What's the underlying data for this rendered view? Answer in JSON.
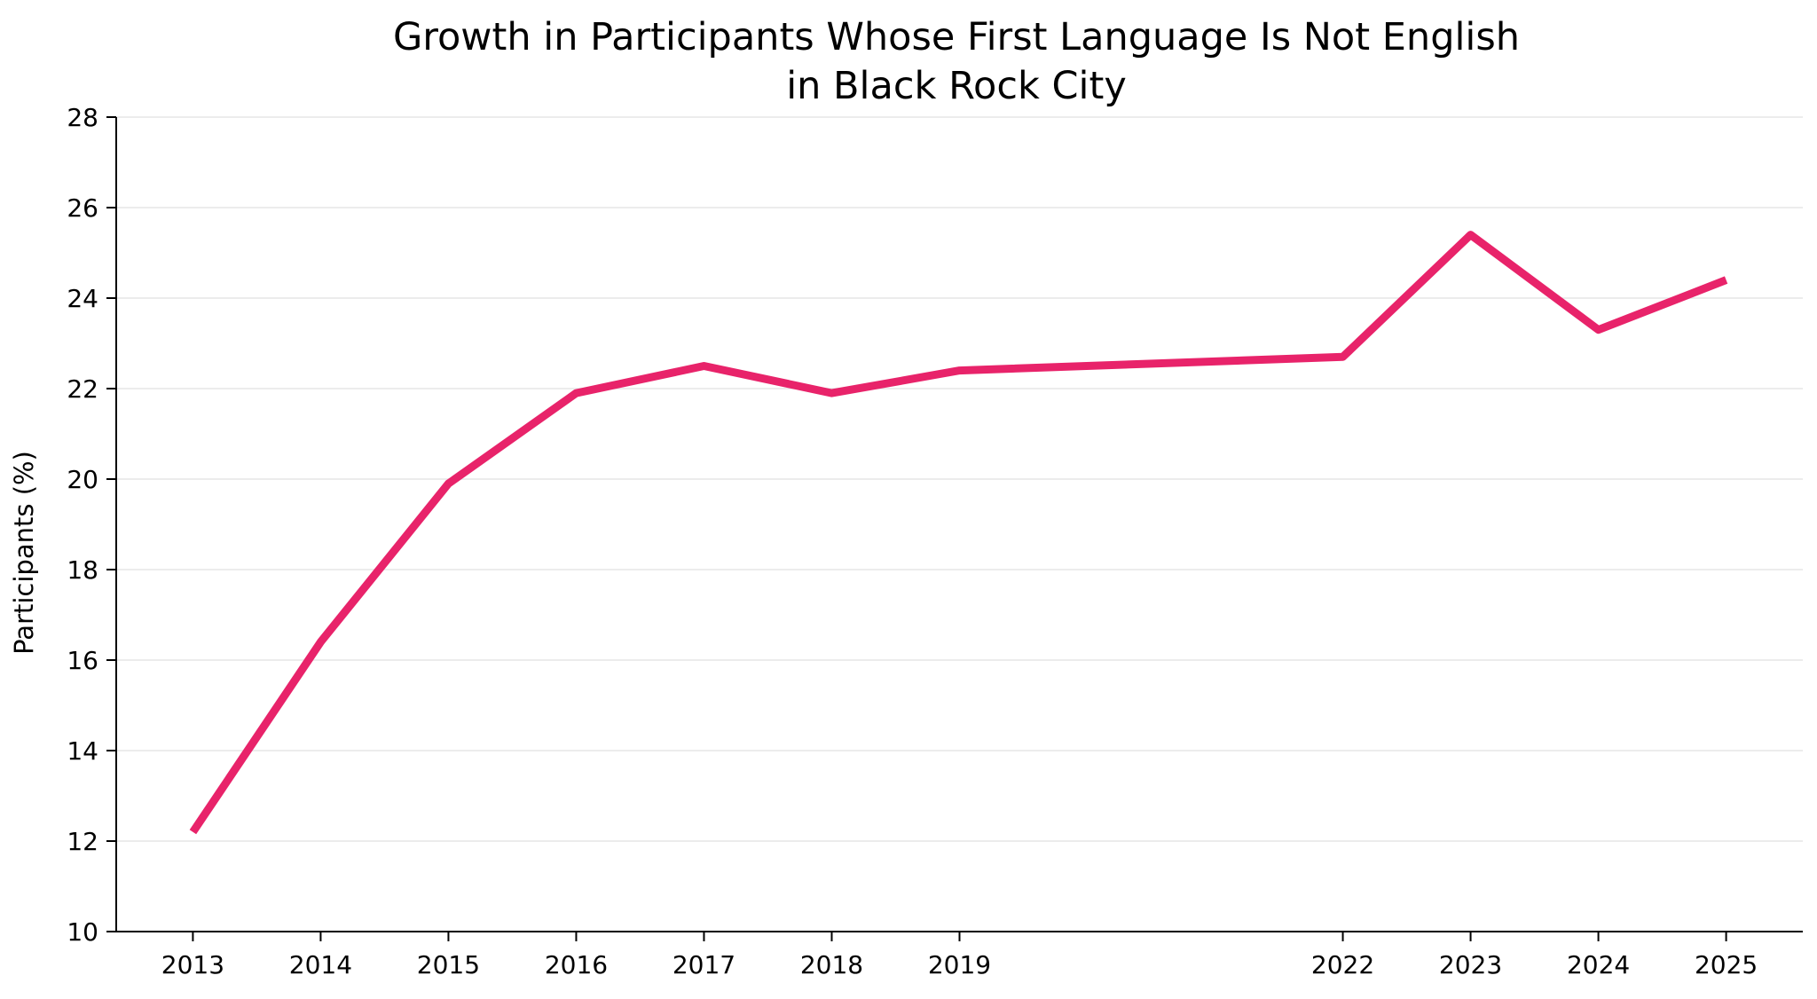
{
  "chart_data": {
    "type": "line",
    "title": [
      "Growth in Participants Whose First Language Is Not English",
      "in Black Rock City"
    ],
    "xlabel": "",
    "ylabel": "Participants (%)",
    "x": [
      2013,
      2014,
      2015,
      2016,
      2017,
      2018,
      2019,
      2022,
      2023,
      2024,
      2025
    ],
    "xticks": [
      "2013",
      "2014",
      "2015",
      "2016",
      "2017",
      "2018",
      "2019",
      "2022",
      "2023",
      "2024",
      "2025"
    ],
    "yticks": [
      "10",
      "12",
      "14",
      "16",
      "18",
      "20",
      "22",
      "24",
      "26",
      "28"
    ],
    "ylim": [
      10,
      28
    ],
    "xlim": [
      2012.4,
      2025.6
    ],
    "grid": "horizontal",
    "series": [
      {
        "color": "#e8236a",
        "values": [
          12.2,
          16.4,
          19.9,
          21.9,
          22.5,
          21.9,
          22.4,
          22.7,
          25.4,
          23.3,
          24.4
        ]
      }
    ]
  }
}
